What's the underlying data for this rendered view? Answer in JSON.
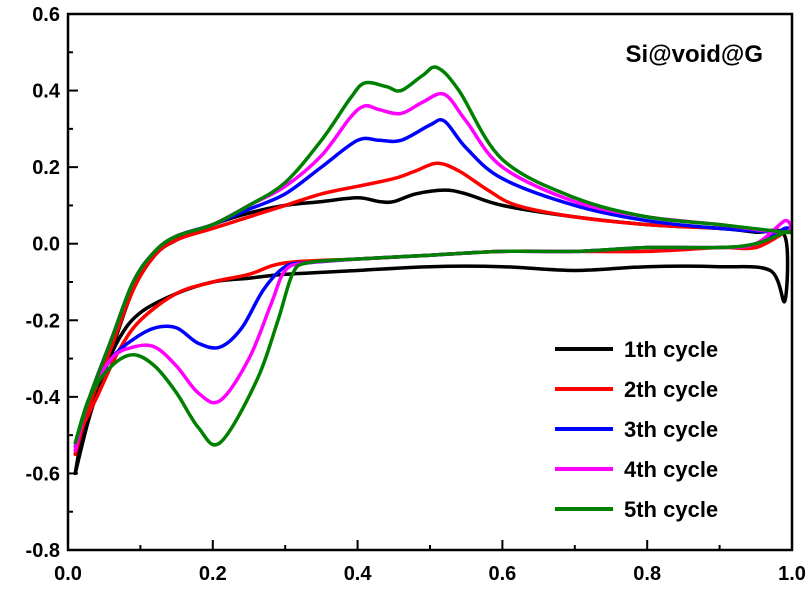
{
  "chart_data": {
    "type": "line",
    "title": "",
    "annotation": "Si@void@G",
    "xlabel": "",
    "ylabel": "",
    "xlim": [
      0.0,
      1.0
    ],
    "ylim": [
      -0.8,
      0.6
    ],
    "x_ticks": [
      "0.0",
      "0.2",
      "0.4",
      "0.6",
      "0.8",
      "1.0"
    ],
    "y_ticks": [
      "-0.8",
      "-0.6",
      "-0.4",
      "-0.2",
      "0.0",
      "0.2",
      "0.4",
      "0.6"
    ],
    "grid": false,
    "legend_position": "bottom-right",
    "series": [
      {
        "name": "1th cycle",
        "color": "#000000",
        "anodic": [
          [
            0.01,
            -0.6
          ],
          [
            0.03,
            -0.45
          ],
          [
            0.06,
            -0.28
          ],
          [
            0.09,
            -0.12
          ],
          [
            0.12,
            -0.03
          ],
          [
            0.15,
            0.01
          ],
          [
            0.2,
            0.05
          ],
          [
            0.25,
            0.08
          ],
          [
            0.3,
            0.1
          ],
          [
            0.35,
            0.11
          ],
          [
            0.4,
            0.12
          ],
          [
            0.43,
            0.11
          ],
          [
            0.45,
            0.11
          ],
          [
            0.48,
            0.13
          ],
          [
            0.52,
            0.14
          ],
          [
            0.55,
            0.13
          ],
          [
            0.6,
            0.1
          ],
          [
            0.7,
            0.07
          ],
          [
            0.8,
            0.05
          ],
          [
            0.9,
            0.04
          ],
          [
            0.95,
            0.03
          ],
          [
            0.99,
            0.02
          ]
        ],
        "cathodic": [
          [
            0.99,
            -0.15
          ],
          [
            0.97,
            -0.07
          ],
          [
            0.9,
            -0.06
          ],
          [
            0.8,
            -0.06
          ],
          [
            0.7,
            -0.07
          ],
          [
            0.6,
            -0.06
          ],
          [
            0.5,
            -0.06
          ],
          [
            0.4,
            -0.07
          ],
          [
            0.3,
            -0.08
          ],
          [
            0.25,
            -0.09
          ],
          [
            0.2,
            -0.1
          ],
          [
            0.15,
            -0.13
          ],
          [
            0.1,
            -0.18
          ],
          [
            0.07,
            -0.25
          ],
          [
            0.04,
            -0.38
          ],
          [
            0.02,
            -0.5
          ],
          [
            0.01,
            -0.6
          ]
        ]
      },
      {
        "name": "2th cycle",
        "color": "#ff0000",
        "anodic": [
          [
            0.01,
            -0.55
          ],
          [
            0.03,
            -0.42
          ],
          [
            0.06,
            -0.27
          ],
          [
            0.09,
            -0.12
          ],
          [
            0.12,
            -0.03
          ],
          [
            0.15,
            0.01
          ],
          [
            0.2,
            0.04
          ],
          [
            0.25,
            0.07
          ],
          [
            0.3,
            0.1
          ],
          [
            0.35,
            0.13
          ],
          [
            0.4,
            0.15
          ],
          [
            0.45,
            0.17
          ],
          [
            0.48,
            0.19
          ],
          [
            0.51,
            0.21
          ],
          [
            0.54,
            0.19
          ],
          [
            0.58,
            0.14
          ],
          [
            0.62,
            0.1
          ],
          [
            0.7,
            0.07
          ],
          [
            0.8,
            0.05
          ],
          [
            0.9,
            0.04
          ],
          [
            0.99,
            0.03
          ]
        ],
        "cathodic": [
          [
            0.99,
            0.03
          ],
          [
            0.95,
            -0.01
          ],
          [
            0.9,
            -0.01
          ],
          [
            0.8,
            -0.02
          ],
          [
            0.7,
            -0.02
          ],
          [
            0.6,
            -0.02
          ],
          [
            0.5,
            -0.03
          ],
          [
            0.4,
            -0.04
          ],
          [
            0.3,
            -0.05
          ],
          [
            0.25,
            -0.08
          ],
          [
            0.2,
            -0.1
          ],
          [
            0.15,
            -0.13
          ],
          [
            0.1,
            -0.2
          ],
          [
            0.07,
            -0.28
          ],
          [
            0.04,
            -0.4
          ],
          [
            0.02,
            -0.48
          ],
          [
            0.01,
            -0.55
          ]
        ]
      },
      {
        "name": "3th cycle",
        "color": "#0000ff",
        "anodic": [
          [
            0.01,
            -0.53
          ],
          [
            0.03,
            -0.4
          ],
          [
            0.06,
            -0.25
          ],
          [
            0.09,
            -0.1
          ],
          [
            0.12,
            -0.02
          ],
          [
            0.15,
            0.02
          ],
          [
            0.2,
            0.05
          ],
          [
            0.25,
            0.09
          ],
          [
            0.3,
            0.13
          ],
          [
            0.35,
            0.2
          ],
          [
            0.4,
            0.27
          ],
          [
            0.43,
            0.27
          ],
          [
            0.46,
            0.27
          ],
          [
            0.5,
            0.31
          ],
          [
            0.52,
            0.32
          ],
          [
            0.55,
            0.25
          ],
          [
            0.6,
            0.17
          ],
          [
            0.7,
            0.1
          ],
          [
            0.8,
            0.06
          ],
          [
            0.9,
            0.04
          ],
          [
            0.99,
            0.03
          ]
        ],
        "cathodic": [
          [
            0.99,
            0.04
          ],
          [
            0.95,
            0.0
          ],
          [
            0.9,
            -0.01
          ],
          [
            0.8,
            -0.01
          ],
          [
            0.7,
            -0.02
          ],
          [
            0.6,
            -0.02
          ],
          [
            0.5,
            -0.03
          ],
          [
            0.4,
            -0.04
          ],
          [
            0.33,
            -0.05
          ],
          [
            0.3,
            -0.06
          ],
          [
            0.27,
            -0.12
          ],
          [
            0.24,
            -0.22
          ],
          [
            0.21,
            -0.27
          ],
          [
            0.18,
            -0.26
          ],
          [
            0.15,
            -0.22
          ],
          [
            0.12,
            -0.22
          ],
          [
            0.09,
            -0.25
          ],
          [
            0.06,
            -0.3
          ],
          [
            0.03,
            -0.4
          ],
          [
            0.01,
            -0.53
          ]
        ]
      },
      {
        "name": "4th cycle",
        "color": "#ff00ff",
        "anodic": [
          [
            0.01,
            -0.53
          ],
          [
            0.03,
            -0.4
          ],
          [
            0.06,
            -0.25
          ],
          [
            0.09,
            -0.1
          ],
          [
            0.12,
            -0.02
          ],
          [
            0.15,
            0.02
          ],
          [
            0.2,
            0.05
          ],
          [
            0.25,
            0.1
          ],
          [
            0.3,
            0.15
          ],
          [
            0.35,
            0.23
          ],
          [
            0.39,
            0.33
          ],
          [
            0.41,
            0.36
          ],
          [
            0.43,
            0.35
          ],
          [
            0.46,
            0.34
          ],
          [
            0.49,
            0.37
          ],
          [
            0.52,
            0.39
          ],
          [
            0.55,
            0.32
          ],
          [
            0.6,
            0.2
          ],
          [
            0.7,
            0.11
          ],
          [
            0.8,
            0.07
          ],
          [
            0.9,
            0.05
          ],
          [
            0.99,
            0.03
          ]
        ],
        "cathodic": [
          [
            0.99,
            0.06
          ],
          [
            0.95,
            0.0
          ],
          [
            0.9,
            -0.01
          ],
          [
            0.8,
            -0.01
          ],
          [
            0.7,
            -0.02
          ],
          [
            0.6,
            -0.02
          ],
          [
            0.5,
            -0.03
          ],
          [
            0.4,
            -0.04
          ],
          [
            0.33,
            -0.05
          ],
          [
            0.3,
            -0.07
          ],
          [
            0.28,
            -0.16
          ],
          [
            0.25,
            -0.3
          ],
          [
            0.21,
            -0.41
          ],
          [
            0.18,
            -0.39
          ],
          [
            0.15,
            -0.32
          ],
          [
            0.12,
            -0.27
          ],
          [
            0.09,
            -0.27
          ],
          [
            0.06,
            -0.3
          ],
          [
            0.03,
            -0.4
          ],
          [
            0.01,
            -0.54
          ]
        ]
      },
      {
        "name": "5th cycle",
        "color": "#008000",
        "anodic": [
          [
            0.01,
            -0.52
          ],
          [
            0.03,
            -0.4
          ],
          [
            0.06,
            -0.25
          ],
          [
            0.09,
            -0.1
          ],
          [
            0.12,
            -0.02
          ],
          [
            0.15,
            0.02
          ],
          [
            0.2,
            0.05
          ],
          [
            0.25,
            0.1
          ],
          [
            0.3,
            0.16
          ],
          [
            0.35,
            0.27
          ],
          [
            0.39,
            0.38
          ],
          [
            0.41,
            0.42
          ],
          [
            0.44,
            0.41
          ],
          [
            0.46,
            0.4
          ],
          [
            0.49,
            0.44
          ],
          [
            0.51,
            0.46
          ],
          [
            0.54,
            0.4
          ],
          [
            0.6,
            0.22
          ],
          [
            0.7,
            0.12
          ],
          [
            0.8,
            0.07
          ],
          [
            0.9,
            0.05
          ],
          [
            0.99,
            0.03
          ]
        ],
        "cathodic": [
          [
            0.99,
            0.03
          ],
          [
            0.95,
            0.0
          ],
          [
            0.9,
            -0.01
          ],
          [
            0.8,
            -0.01
          ],
          [
            0.7,
            -0.02
          ],
          [
            0.6,
            -0.02
          ],
          [
            0.5,
            -0.03
          ],
          [
            0.4,
            -0.04
          ],
          [
            0.33,
            -0.05
          ],
          [
            0.31,
            -0.08
          ],
          [
            0.29,
            -0.2
          ],
          [
            0.26,
            -0.36
          ],
          [
            0.21,
            -0.52
          ],
          [
            0.18,
            -0.48
          ],
          [
            0.15,
            -0.39
          ],
          [
            0.12,
            -0.32
          ],
          [
            0.09,
            -0.29
          ],
          [
            0.06,
            -0.32
          ],
          [
            0.03,
            -0.4
          ],
          [
            0.01,
            -0.52
          ]
        ]
      }
    ]
  }
}
